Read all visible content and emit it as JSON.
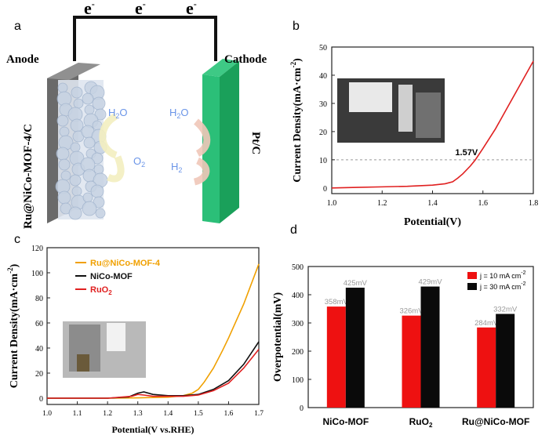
{
  "chart_data": [
    {
      "panel": "a",
      "type": "diagram",
      "electron_labels": [
        "e",
        "e",
        "e"
      ],
      "electron_superscript": "-",
      "anode_label": "Anode",
      "cathode_label": "Cathode",
      "anode_material": "Ru@NiCo-MOF-4/C",
      "cathode_material": "Pt/C",
      "anode_species": [
        "H2O",
        "O2"
      ],
      "cathode_species": [
        "H2O",
        "H2"
      ]
    },
    {
      "panel": "b",
      "type": "line",
      "xlabel": "Potential(V)",
      "ylabel": "Current Density(mA·cm",
      "ylabel_superscript": "-2",
      "ylabel_close": ")",
      "xlim": [
        1.0,
        1.8
      ],
      "ylim": [
        -2,
        50
      ],
      "xticks": [
        "1.0",
        "1.2",
        "1.4",
        "1.6",
        "1.8"
      ],
      "yticks": [
        "0",
        "10",
        "20",
        "30",
        "40",
        "50"
      ],
      "annotation": "1.57V",
      "reference_line_y": 10,
      "series": [
        {
          "color": "#e02020",
          "x": [
            1.0,
            1.1,
            1.2,
            1.3,
            1.4,
            1.45,
            1.48,
            1.5,
            1.52,
            1.55,
            1.57,
            1.6,
            1.65,
            1.7,
            1.75,
            1.8
          ],
          "y": [
            0,
            0.2,
            0.4,
            0.6,
            1.0,
            1.5,
            2.2,
            3.5,
            5.0,
            7.8,
            10,
            14,
            21,
            29,
            37,
            45
          ]
        }
      ]
    },
    {
      "panel": "c",
      "type": "line",
      "xlabel": "Potential(V vs.RHE)",
      "ylabel": "Current Density(mA·cm",
      "ylabel_superscript": "-2",
      "ylabel_close": ")",
      "xlim": [
        1.0,
        1.7
      ],
      "ylim": [
        -5,
        120
      ],
      "xticks": [
        "1.0",
        "1.1",
        "1.2",
        "1.3",
        "1.4",
        "1.5",
        "1.6",
        "1.7"
      ],
      "yticks": [
        "0",
        "20",
        "40",
        "60",
        "80",
        "100",
        "120"
      ],
      "legend_position": "top-left",
      "series": [
        {
          "name": "Ru@NiCo-MOF-4",
          "color": "#f0a000",
          "x": [
            1.0,
            1.2,
            1.3,
            1.4,
            1.45,
            1.48,
            1.5,
            1.52,
            1.55,
            1.58,
            1.6,
            1.65,
            1.7
          ],
          "y": [
            0,
            0,
            0.3,
            0.8,
            2,
            4,
            7,
            13,
            24,
            38,
            48,
            75,
            107
          ]
        },
        {
          "name": "NiCo-MOF",
          "color": "#111111",
          "x": [
            1.0,
            1.2,
            1.27,
            1.3,
            1.32,
            1.35,
            1.4,
            1.45,
            1.5,
            1.55,
            1.6,
            1.65,
            1.7
          ],
          "y": [
            0,
            0,
            1,
            4,
            5,
            3,
            2,
            2,
            3,
            7,
            14,
            27,
            45
          ]
        },
        {
          "name": "RuO",
          "name_sub": "2",
          "color": "#e02020",
          "x": [
            1.0,
            1.2,
            1.28,
            1.3,
            1.32,
            1.35,
            1.4,
            1.45,
            1.5,
            1.55,
            1.6,
            1.65,
            1.7
          ],
          "y": [
            0,
            0,
            1.5,
            3,
            2.5,
            1.5,
            1.5,
            1.5,
            2.5,
            6,
            12,
            24,
            39
          ]
        }
      ]
    },
    {
      "panel": "d",
      "type": "bar",
      "ylabel": "Overpotential(mV)",
      "ylim": [
        0,
        500
      ],
      "yticks": [
        "0",
        "100",
        "200",
        "300",
        "400",
        "500"
      ],
      "categories": [
        "NiCo-MOF",
        "RuO",
        "Ru@NiCo-MOF"
      ],
      "category_subscripts": [
        "",
        "2",
        ""
      ],
      "legend_position": "top-right",
      "series": [
        {
          "name": "j = 10 mA   cm",
          "name_sup": "-2",
          "color": "#ee1111",
          "values": [
            358,
            326,
            284
          ],
          "labels": [
            "358mV",
            "326mV",
            "284mV"
          ]
        },
        {
          "name": "j = 30 mA   cm",
          "name_sup": "-2",
          "color": "#0a0a0a",
          "values": [
            425,
            429,
            332
          ],
          "labels": [
            "425mV",
            "429mV",
            "332mV"
          ]
        }
      ]
    }
  ]
}
